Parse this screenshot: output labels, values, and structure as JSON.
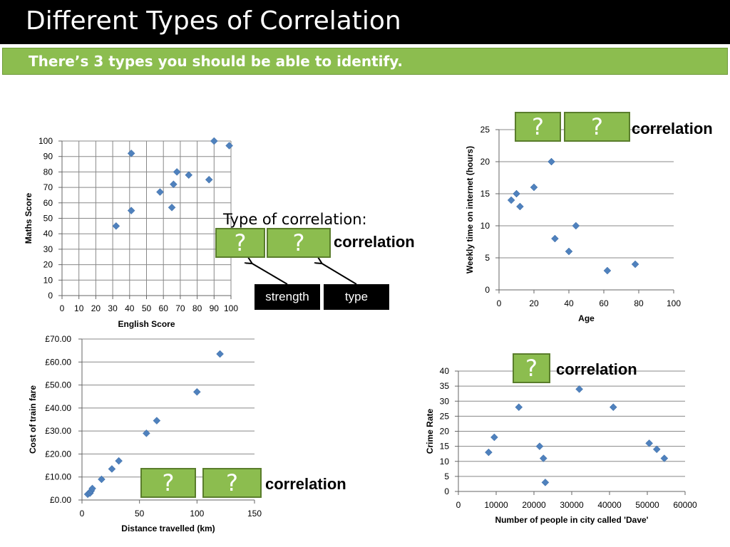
{
  "header": {
    "title": "Different Types of Correlation",
    "subtitle": "There’s 3 types you should be able to identify."
  },
  "colors": {
    "accent": "#8cbd4f",
    "marker": "#4f81bd",
    "grid": "#888888"
  },
  "legend": {
    "type_of_correlation": "Type of correlation:",
    "box_q": "?",
    "correlation": "correlation",
    "strength_label": "strength",
    "type_label": "type"
  },
  "chart_data": [
    {
      "id": "maths-english",
      "type": "scatter",
      "xlabel": "English Score",
      "ylabel": "Maths Score",
      "xlim": [
        0,
        100
      ],
      "ylim": [
        0,
        100
      ],
      "xticks": [
        "0",
        "10",
        "20",
        "30",
        "40",
        "50",
        "60",
        "70",
        "80",
        "90",
        "100"
      ],
      "yticks": [
        "0",
        "10",
        "20",
        "30",
        "40",
        "50",
        "60",
        "70",
        "80",
        "90",
        "100"
      ],
      "grid": "both",
      "points": [
        [
          32,
          45
        ],
        [
          41,
          55
        ],
        [
          41,
          92
        ],
        [
          58,
          67
        ],
        [
          65,
          57
        ],
        [
          66,
          72
        ],
        [
          68,
          80
        ],
        [
          75,
          78
        ],
        [
          87,
          75
        ],
        [
          90,
          100
        ],
        [
          99,
          97
        ]
      ]
    },
    {
      "id": "internet-age",
      "type": "scatter",
      "xlabel": "Age",
      "ylabel": "Weekly time on internet (hours)",
      "xlim": [
        0,
        100
      ],
      "ylim": [
        0,
        25
      ],
      "xticks": [
        "0",
        "20",
        "40",
        "60",
        "80",
        "100"
      ],
      "yticks": [
        "0",
        "5",
        "10",
        "15",
        "20",
        "25"
      ],
      "grid": "horizontal",
      "points": [
        [
          7,
          14
        ],
        [
          10,
          15
        ],
        [
          12,
          13
        ],
        [
          20,
          16
        ],
        [
          30,
          20
        ],
        [
          32,
          8
        ],
        [
          40,
          6
        ],
        [
          44,
          10
        ],
        [
          62,
          3
        ],
        [
          78,
          4
        ]
      ]
    },
    {
      "id": "train-fare",
      "type": "scatter",
      "xlabel": "Distance travelled (km)",
      "ylabel": "Cost of train fare",
      "xlim": [
        0,
        150
      ],
      "ylim": [
        0,
        70
      ],
      "xticks": [
        "0",
        "50",
        "100",
        "150"
      ],
      "yticks": [
        "£0.00",
        "£10.00",
        "£20.00",
        "£30.00",
        "£40.00",
        "£50.00",
        "£60.00",
        "£70.00"
      ],
      "grid": "horizontal",
      "points": [
        [
          5,
          2.5
        ],
        [
          7,
          3
        ],
        [
          8,
          4
        ],
        [
          9,
          5
        ],
        [
          17,
          9
        ],
        [
          26,
          13.5
        ],
        [
          32,
          17
        ],
        [
          56,
          29
        ],
        [
          65,
          34.5
        ],
        [
          100,
          47
        ],
        [
          120,
          63.5
        ]
      ]
    },
    {
      "id": "crime-dave",
      "type": "scatter",
      "xlabel": "Number of people in city called 'Dave'",
      "ylabel": "Crime Rate",
      "xlim": [
        0,
        60000
      ],
      "ylim": [
        0,
        40
      ],
      "xticks": [
        "0",
        "10000",
        "20000",
        "30000",
        "40000",
        "50000",
        "60000"
      ],
      "yticks": [
        "0",
        "5",
        "10",
        "15",
        "20",
        "25",
        "30",
        "35",
        "40"
      ],
      "grid": "horizontal",
      "points": [
        [
          8000,
          13
        ],
        [
          9500,
          18
        ],
        [
          16000,
          28
        ],
        [
          21500,
          15
        ],
        [
          22500,
          11
        ],
        [
          23000,
          3
        ],
        [
          32000,
          34
        ],
        [
          41000,
          28
        ],
        [
          50500,
          16
        ],
        [
          52500,
          14
        ],
        [
          54500,
          11
        ]
      ]
    }
  ]
}
